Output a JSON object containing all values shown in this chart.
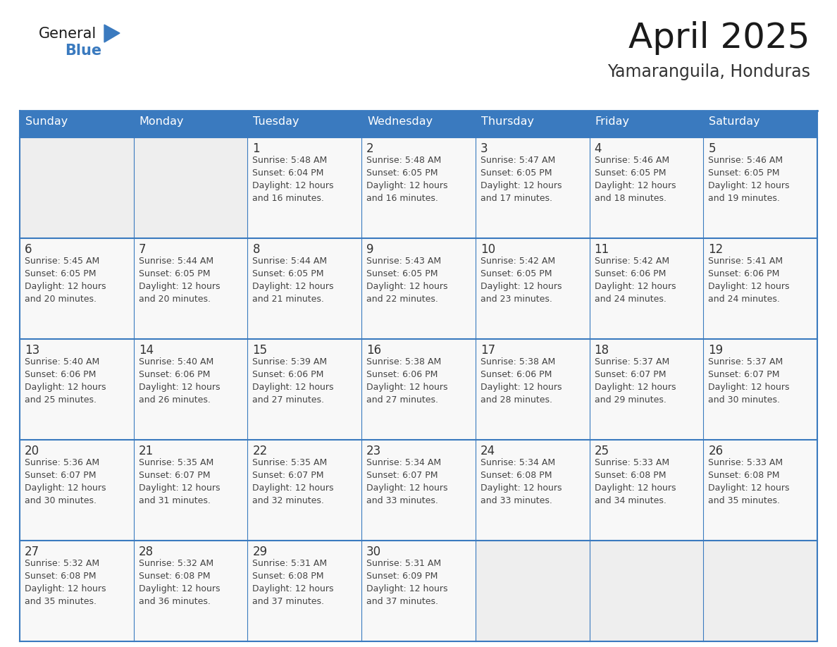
{
  "title": "April 2025",
  "subtitle": "Yamaranguila, Honduras",
  "days_of_week": [
    "Sunday",
    "Monday",
    "Tuesday",
    "Wednesday",
    "Thursday",
    "Friday",
    "Saturday"
  ],
  "header_bg_color": "#3a7abf",
  "header_text_color": "#ffffff",
  "cell_bg_color": "#ffffff",
  "empty_cell_bg_color": "#eeeeee",
  "alt_row_bg_color": "#f0f0f0",
  "border_color": "#3a7abf",
  "text_color": "#444444",
  "day_num_color": "#333333",
  "calendar_data": [
    [
      {
        "day": 0,
        "sunrise": "",
        "sunset": "",
        "daylight": ""
      },
      {
        "day": 0,
        "sunrise": "",
        "sunset": "",
        "daylight": ""
      },
      {
        "day": 1,
        "sunrise": "5:48 AM",
        "sunset": "6:04 PM",
        "daylight": "12 hours and 16 minutes."
      },
      {
        "day": 2,
        "sunrise": "5:48 AM",
        "sunset": "6:05 PM",
        "daylight": "12 hours and 16 minutes."
      },
      {
        "day": 3,
        "sunrise": "5:47 AM",
        "sunset": "6:05 PM",
        "daylight": "12 hours and 17 minutes."
      },
      {
        "day": 4,
        "sunrise": "5:46 AM",
        "sunset": "6:05 PM",
        "daylight": "12 hours and 18 minutes."
      },
      {
        "day": 5,
        "sunrise": "5:46 AM",
        "sunset": "6:05 PM",
        "daylight": "12 hours and 19 minutes."
      }
    ],
    [
      {
        "day": 6,
        "sunrise": "5:45 AM",
        "sunset": "6:05 PM",
        "daylight": "12 hours and 20 minutes."
      },
      {
        "day": 7,
        "sunrise": "5:44 AM",
        "sunset": "6:05 PM",
        "daylight": "12 hours and 20 minutes."
      },
      {
        "day": 8,
        "sunrise": "5:44 AM",
        "sunset": "6:05 PM",
        "daylight": "12 hours and 21 minutes."
      },
      {
        "day": 9,
        "sunrise": "5:43 AM",
        "sunset": "6:05 PM",
        "daylight": "12 hours and 22 minutes."
      },
      {
        "day": 10,
        "sunrise": "5:42 AM",
        "sunset": "6:05 PM",
        "daylight": "12 hours and 23 minutes."
      },
      {
        "day": 11,
        "sunrise": "5:42 AM",
        "sunset": "6:06 PM",
        "daylight": "12 hours and 24 minutes."
      },
      {
        "day": 12,
        "sunrise": "5:41 AM",
        "sunset": "6:06 PM",
        "daylight": "12 hours and 24 minutes."
      }
    ],
    [
      {
        "day": 13,
        "sunrise": "5:40 AM",
        "sunset": "6:06 PM",
        "daylight": "12 hours and 25 minutes."
      },
      {
        "day": 14,
        "sunrise": "5:40 AM",
        "sunset": "6:06 PM",
        "daylight": "12 hours and 26 minutes."
      },
      {
        "day": 15,
        "sunrise": "5:39 AM",
        "sunset": "6:06 PM",
        "daylight": "12 hours and 27 minutes."
      },
      {
        "day": 16,
        "sunrise": "5:38 AM",
        "sunset": "6:06 PM",
        "daylight": "12 hours and 27 minutes."
      },
      {
        "day": 17,
        "sunrise": "5:38 AM",
        "sunset": "6:06 PM",
        "daylight": "12 hours and 28 minutes."
      },
      {
        "day": 18,
        "sunrise": "5:37 AM",
        "sunset": "6:07 PM",
        "daylight": "12 hours and 29 minutes."
      },
      {
        "day": 19,
        "sunrise": "5:37 AM",
        "sunset": "6:07 PM",
        "daylight": "12 hours and 30 minutes."
      }
    ],
    [
      {
        "day": 20,
        "sunrise": "5:36 AM",
        "sunset": "6:07 PM",
        "daylight": "12 hours and 30 minutes."
      },
      {
        "day": 21,
        "sunrise": "5:35 AM",
        "sunset": "6:07 PM",
        "daylight": "12 hours and 31 minutes."
      },
      {
        "day": 22,
        "sunrise": "5:35 AM",
        "sunset": "6:07 PM",
        "daylight": "12 hours and 32 minutes."
      },
      {
        "day": 23,
        "sunrise": "5:34 AM",
        "sunset": "6:07 PM",
        "daylight": "12 hours and 33 minutes."
      },
      {
        "day": 24,
        "sunrise": "5:34 AM",
        "sunset": "6:08 PM",
        "daylight": "12 hours and 33 minutes."
      },
      {
        "day": 25,
        "sunrise": "5:33 AM",
        "sunset": "6:08 PM",
        "daylight": "12 hours and 34 minutes."
      },
      {
        "day": 26,
        "sunrise": "5:33 AM",
        "sunset": "6:08 PM",
        "daylight": "12 hours and 35 minutes."
      }
    ],
    [
      {
        "day": 27,
        "sunrise": "5:32 AM",
        "sunset": "6:08 PM",
        "daylight": "12 hours and 35 minutes."
      },
      {
        "day": 28,
        "sunrise": "5:32 AM",
        "sunset": "6:08 PM",
        "daylight": "12 hours and 36 minutes."
      },
      {
        "day": 29,
        "sunrise": "5:31 AM",
        "sunset": "6:08 PM",
        "daylight": "12 hours and 37 minutes."
      },
      {
        "day": 30,
        "sunrise": "5:31 AM",
        "sunset": "6:09 PM",
        "daylight": "12 hours and 37 minutes."
      },
      {
        "day": 0,
        "sunrise": "",
        "sunset": "",
        "daylight": ""
      },
      {
        "day": 0,
        "sunrise": "",
        "sunset": "",
        "daylight": ""
      },
      {
        "day": 0,
        "sunrise": "",
        "sunset": "",
        "daylight": ""
      }
    ]
  ]
}
